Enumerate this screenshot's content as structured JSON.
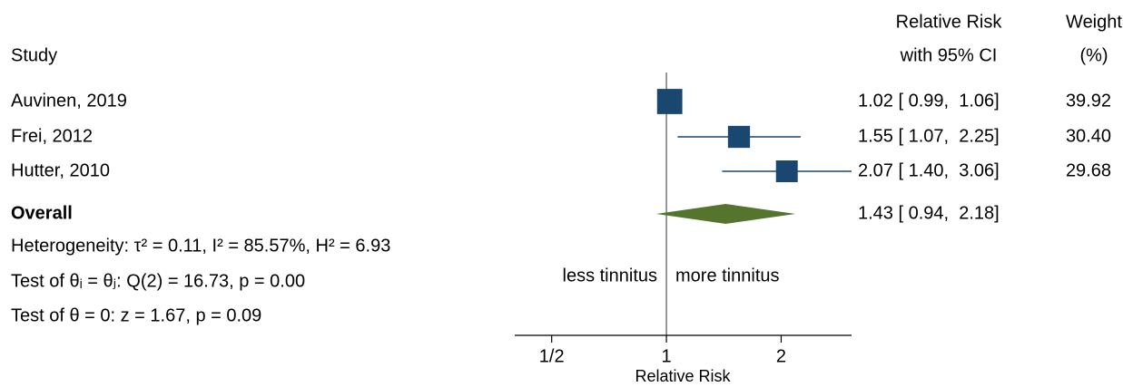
{
  "chart_data": {
    "type": "forest",
    "headers": {
      "study": "Study",
      "effect": [
        "Relative Risk",
        "with 95% CI"
      ],
      "weight": [
        "Weight",
        "(%)"
      ]
    },
    "categories": [
      "Auvinen, 2019",
      "Frei, 2012",
      "Hutter, 2010"
    ],
    "values": [
      1.02,
      1.55,
      2.07
    ],
    "lower": [
      0.99,
      1.07,
      1.4
    ],
    "upper": [
      1.06,
      2.25,
      3.06
    ],
    "value_labels": [
      "1.02 [ 0.99,  1.06]",
      "1.55 [ 1.07,  2.25]",
      "2.07 [ 1.40,  3.06]"
    ],
    "weights": [
      39.92,
      30.4,
      29.68
    ],
    "weight_labels": [
      "39.92",
      "30.40",
      "29.68"
    ],
    "color": "#1a476f",
    "overall": {
      "label": "Overall",
      "value": 1.43,
      "lower": 0.94,
      "upper": 2.18,
      "value_label": "1.43 [ 0.94,  2.18]",
      "color": "#55752f"
    },
    "notes": [
      "Heterogeneity: τ² = 0.11, I² = 85.57%, H² = 6.93",
      "Test of θᵢ = θⱼ: Q(2) = 16.73, p = 0.00",
      "Test of θ = 0: z = 1.67, p = 0.09"
    ],
    "annotations": [
      "less tinnitus",
      "more tinnitus"
    ],
    "refline": 1,
    "xlabel": "Relative Risk",
    "xscale": "log",
    "xlim": [
      0.4,
      3.06
    ],
    "xticks": [
      {
        "value": 0.5,
        "label": "1/2"
      },
      1,
      2
    ]
  }
}
